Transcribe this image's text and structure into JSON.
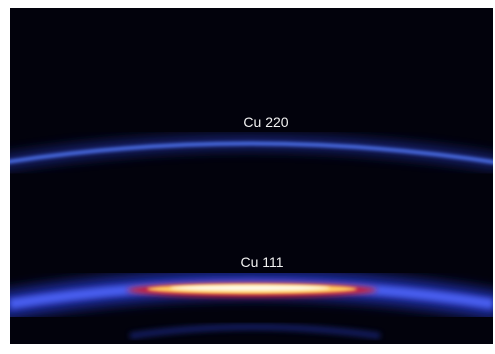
{
  "labels": {
    "upper": "Cu 220",
    "lower": "Cu 111"
  }
}
